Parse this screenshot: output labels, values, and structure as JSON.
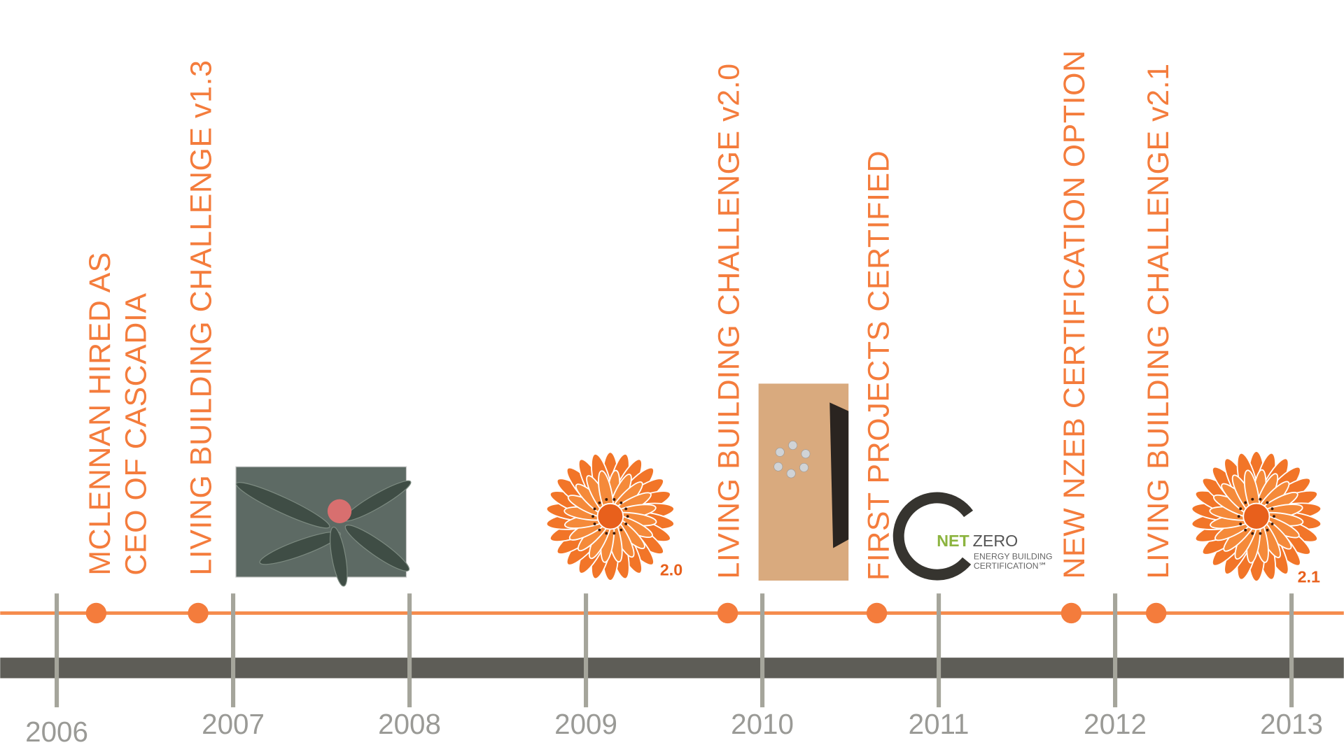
{
  "years": [
    "2006",
    "2007",
    "2008",
    "2009",
    "2010",
    "2011",
    "2012",
    "2013"
  ],
  "events": [
    {
      "lines": [
        "MCLENNAN HIRED AS",
        "CEO OF CASCADIA"
      ]
    },
    {
      "lines": [
        "LIVING BUILDING CHALLENGE v1.3"
      ]
    },
    {
      "lines": [
        "LIVING BUILDING CHALLENGE v2.0"
      ]
    },
    {
      "lines": [
        "FIRST PROJECTS CERTIFIED"
      ]
    },
    {
      "lines": [
        "NEW NZEB CERTIFICATION OPTION"
      ]
    },
    {
      "lines": [
        "LIVING BUILDING CHALLENGE v2.1"
      ]
    }
  ],
  "badges": {
    "flower_a": "2.0",
    "flower_b": "2.1",
    "netzero": {
      "net": "NET",
      "zero": "ZERO",
      "line1": "ENERGY BUILDING",
      "line2": "CERTIFICATION℠"
    }
  }
}
